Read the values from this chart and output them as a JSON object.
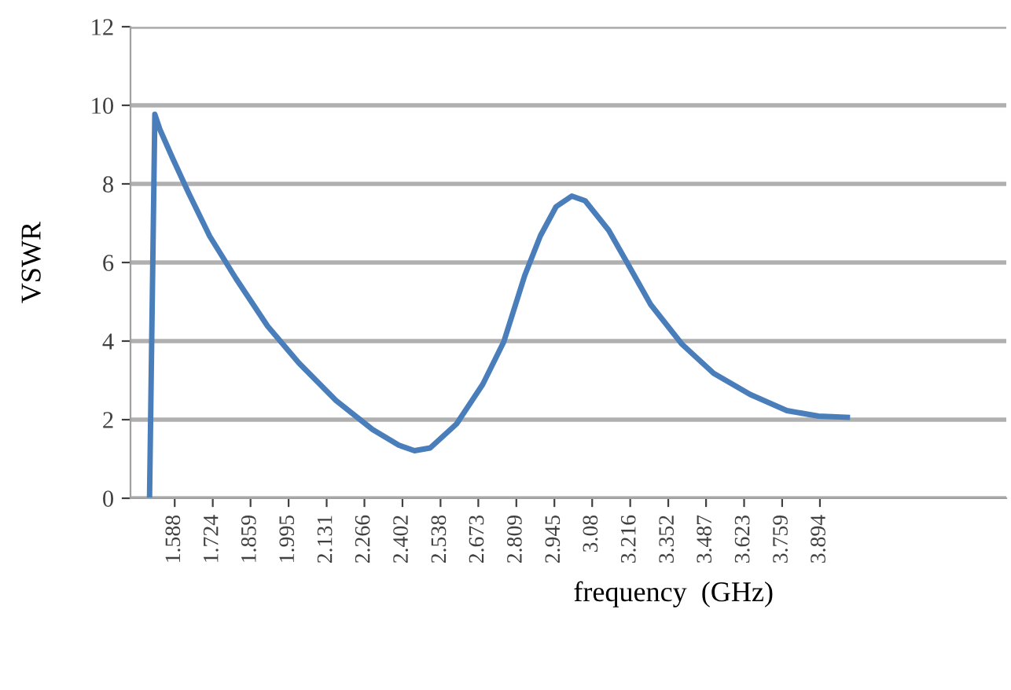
{
  "chart_data": {
    "type": "line",
    "xlabel": "frequency  (GHz)",
    "ylabel": "VSWR",
    "x": [
      1.498,
      1.517,
      1.536,
      1.582,
      1.639,
      1.713,
      1.807,
      1.92,
      2.032,
      2.164,
      2.295,
      2.389,
      2.445,
      2.501,
      2.595,
      2.689,
      2.764,
      2.839,
      2.895,
      2.951,
      3.007,
      3.055,
      3.139,
      3.214,
      3.289,
      3.401,
      3.514,
      3.645,
      3.776,
      3.889,
      3.992
    ],
    "series": [
      {
        "color": "#4a7ebb",
        "values": [
          0,
          9.77,
          9.37,
          8.63,
          7.75,
          6.67,
          5.59,
          4.38,
          3.44,
          2.49,
          1.75,
          1.35,
          1.21,
          1.28,
          1.89,
          2.9,
          3.98,
          5.67,
          6.68,
          7.42,
          7.69,
          7.57,
          6.82,
          5.88,
          4.93,
          3.92,
          3.18,
          2.64,
          2.23,
          2.09,
          2.06
        ]
      }
    ],
    "xlim": [
      1.43,
      4.56
    ],
    "xticks": [
      1.588,
      1.724,
      1.859,
      1.995,
      2.131,
      2.266,
      2.402,
      2.538,
      2.673,
      2.809,
      2.945,
      {
        "value": 3.08,
        "label": "3.08"
      },
      3.216,
      3.352,
      3.487,
      3.623,
      3.759,
      3.894
    ],
    "ylim": [
      0,
      12
    ],
    "yticks": [
      0,
      2,
      4,
      6,
      8,
      10,
      12
    ],
    "grid": "y",
    "legend": false,
    "marker": "none",
    "line_style": "solid"
  }
}
